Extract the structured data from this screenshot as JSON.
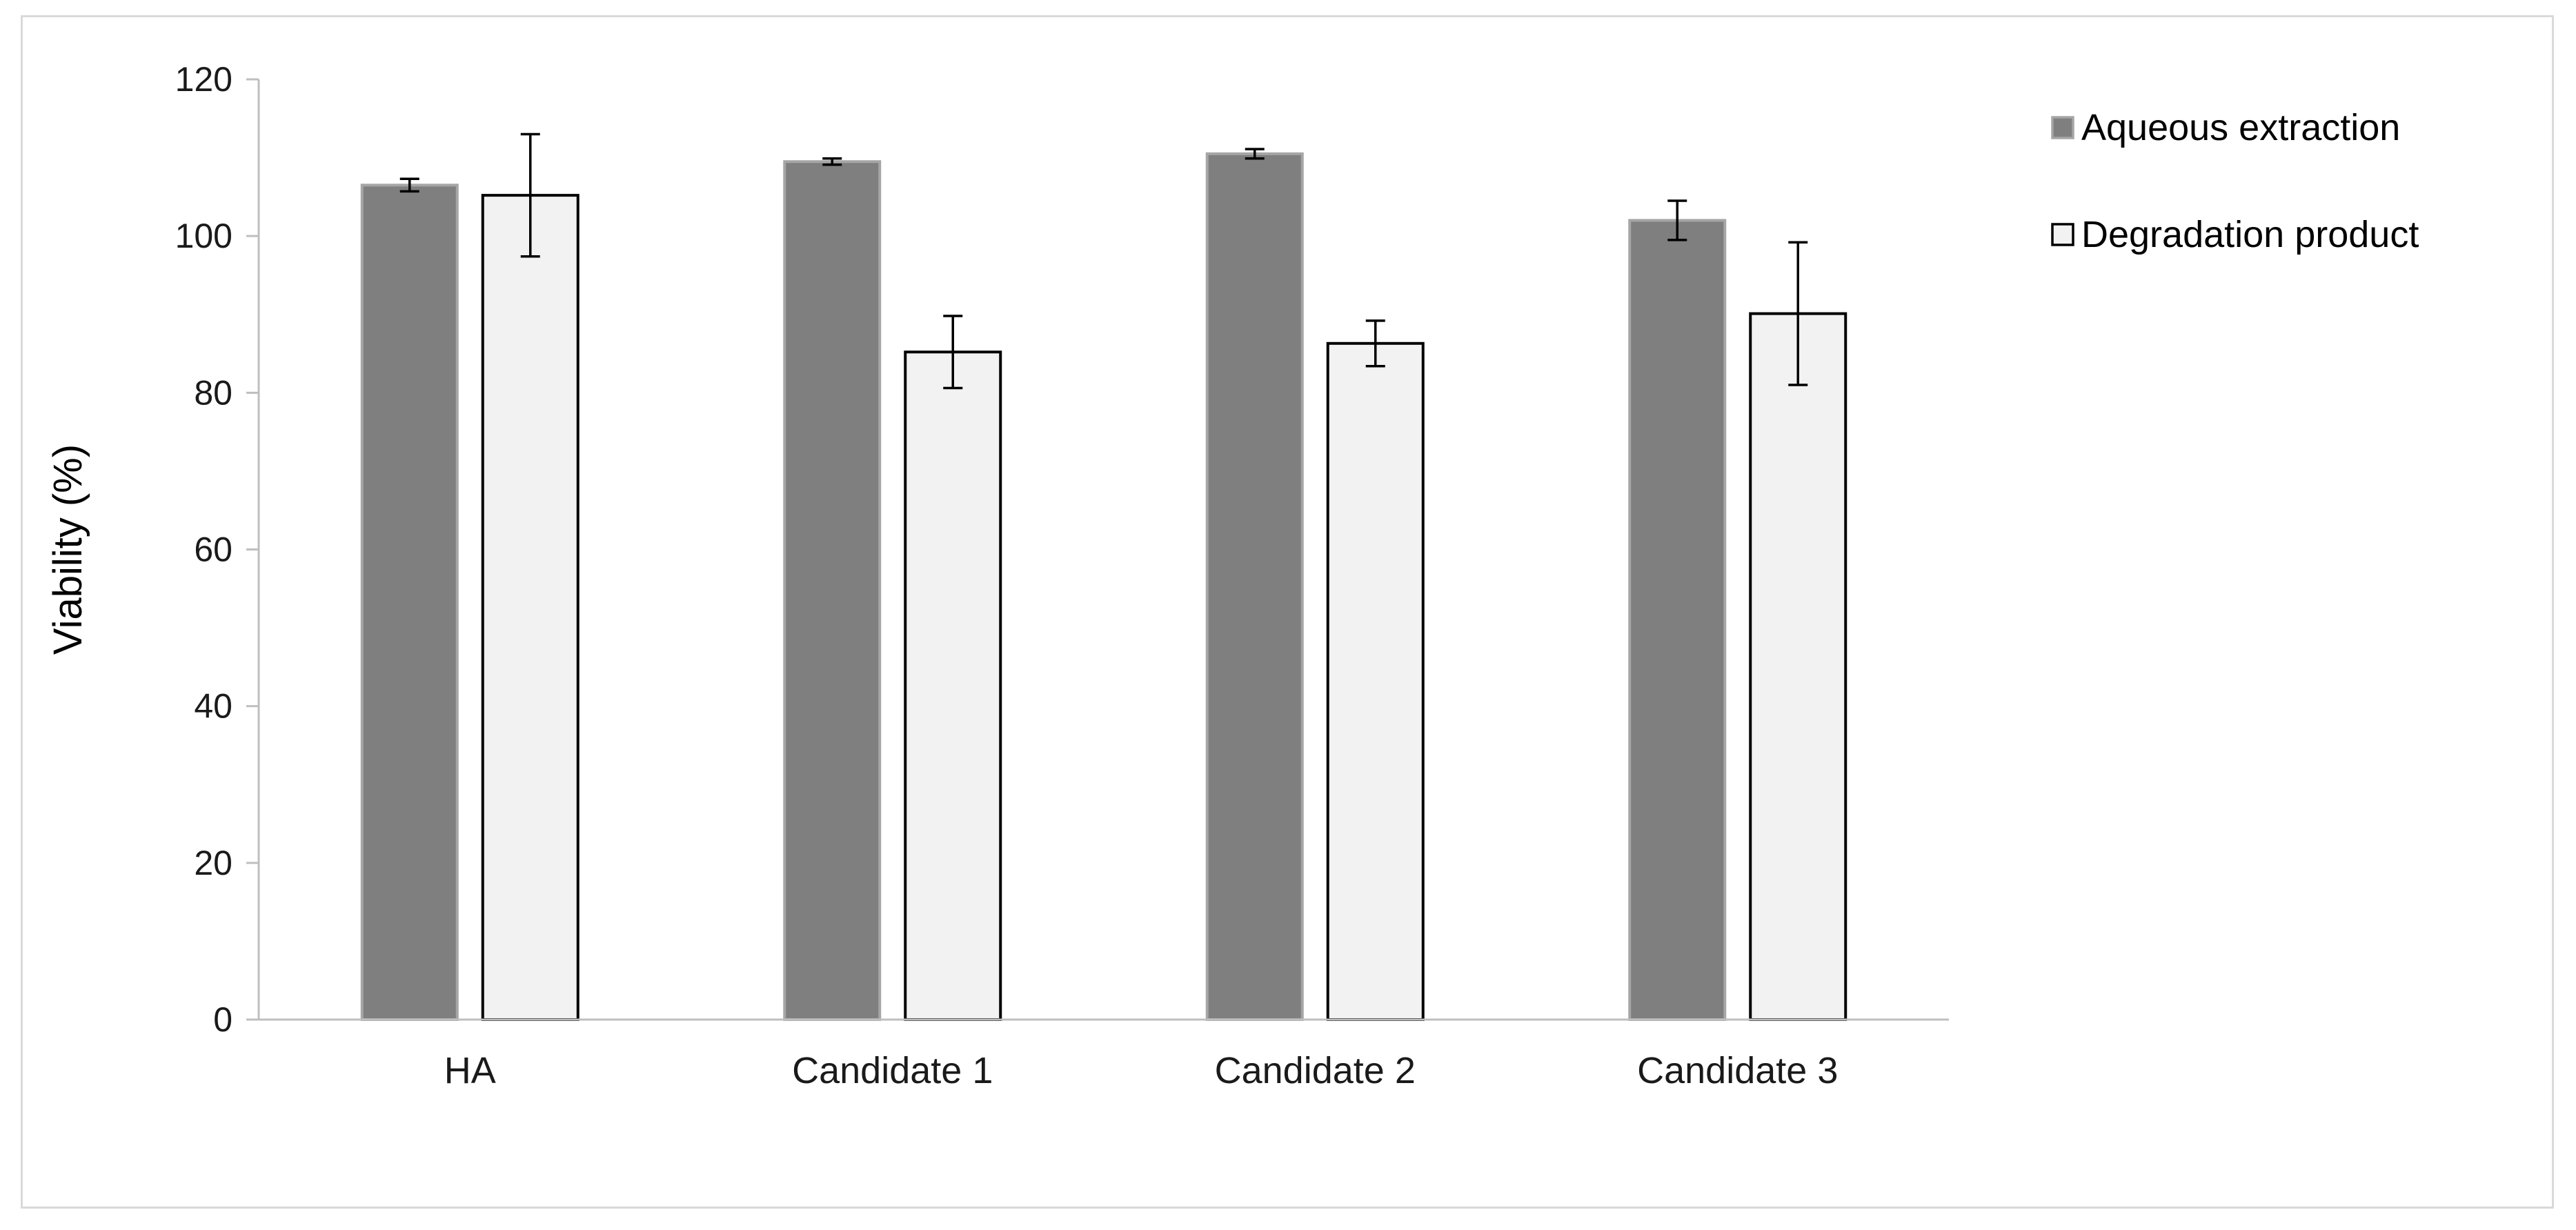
{
  "chart_data": {
    "type": "bar",
    "title": "",
    "xlabel": "",
    "ylabel": "Viability (%)",
    "ylim": [
      0,
      120
    ],
    "yticks": [
      "0",
      "20",
      "40",
      "60",
      "80",
      "100",
      "120"
    ],
    "categories": [
      "HA",
      "Candidate 1",
      "Candidate 2",
      "Candidate 3"
    ],
    "series": [
      {
        "name": "Aqueous extraction",
        "values": [
          106.5,
          109.5,
          110.5,
          102.0
        ],
        "errors": [
          0.8,
          0.4,
          0.6,
          2.5
        ],
        "color": "#7f7f7f",
        "stroke": "#a6a6a6"
      },
      {
        "name": "Degradation product",
        "values": [
          105.2,
          85.2,
          86.3,
          90.1
        ],
        "errors": [
          7.8,
          4.6,
          2.9,
          9.1
        ],
        "color": "#f2f2f2",
        "stroke": "#000000"
      }
    ],
    "grid": false,
    "legend_position": "top-right"
  }
}
